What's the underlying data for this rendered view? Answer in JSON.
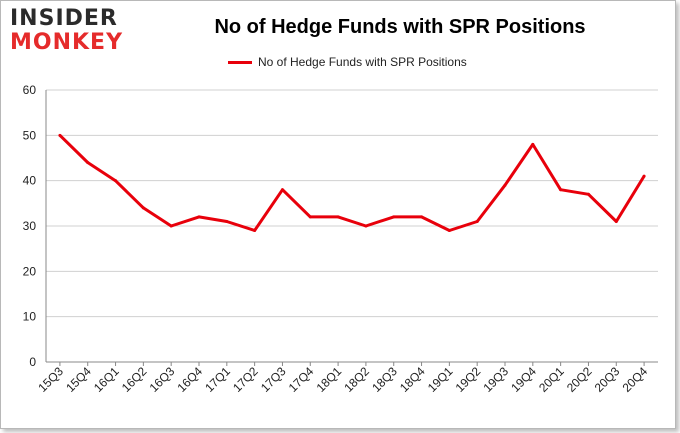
{
  "logo": {
    "line1": "INSIDER",
    "line2": "MONKEY"
  },
  "chart_data": {
    "type": "line",
    "title": "No of Hedge Funds with SPR Positions",
    "xlabel": "",
    "ylabel": "",
    "categories": [
      "15Q3",
      "15Q4",
      "16Q1",
      "16Q2",
      "16Q3",
      "16Q4",
      "17Q1",
      "17Q2",
      "17Q3",
      "17Q4",
      "18Q1",
      "18Q2",
      "18Q3",
      "18Q4",
      "19Q1",
      "19Q2",
      "19Q3",
      "19Q4",
      "20Q1",
      "20Q2",
      "20Q3",
      "20Q4"
    ],
    "series": [
      {
        "name": "No of Hedge Funds with SPR Positions",
        "values": [
          50,
          44,
          40,
          34,
          30,
          32,
          31,
          29,
          38,
          32,
          32,
          30,
          32,
          32,
          29,
          31,
          39,
          48,
          38,
          37,
          31,
          41
        ]
      }
    ],
    "ylim": [
      0,
      60
    ],
    "yticks": [
      0,
      10,
      20,
      30,
      40,
      50,
      60
    ],
    "grid": true,
    "legend_position": "top-center",
    "line_color": "#e8000b"
  }
}
